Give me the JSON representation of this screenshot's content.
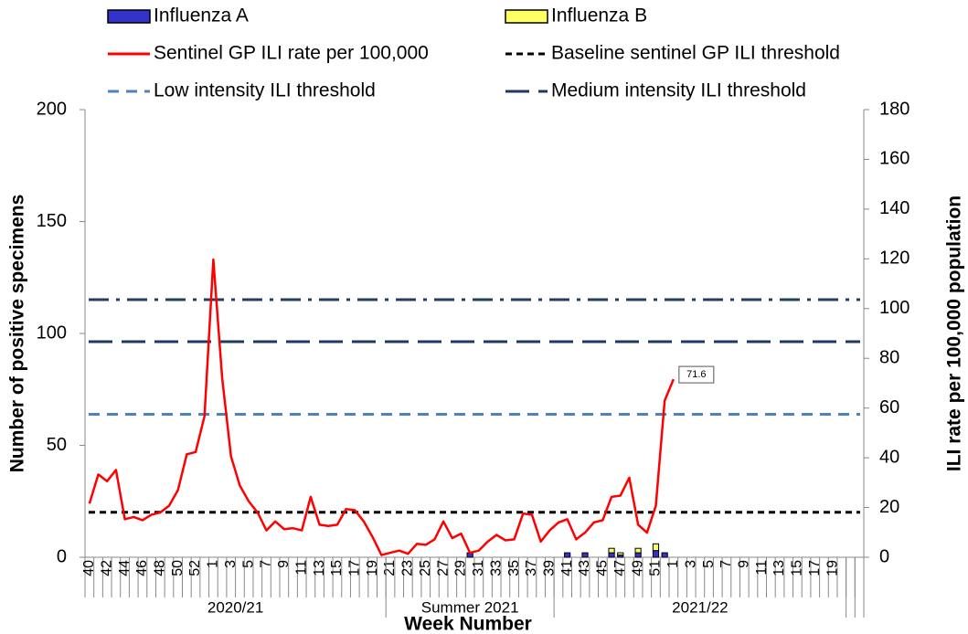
{
  "chart_data": {
    "type": "bar-line",
    "ylabel": "Number of positive specimens",
    "y2label": "ILI rate per 100,000 population",
    "xlabel": "Week Number",
    "ylim": [
      0,
      200
    ],
    "yticks": [
      0,
      50,
      100,
      150,
      200
    ],
    "y2lim": [
      0,
      180
    ],
    "y2ticks": [
      0,
      20,
      40,
      60,
      80,
      100,
      120,
      140,
      160,
      180
    ],
    "categories": [
      "40",
      null,
      "42",
      null,
      "44",
      null,
      "46",
      null,
      "48",
      null,
      "50",
      null,
      "52",
      null,
      "1",
      null,
      "3",
      null,
      "5",
      null,
      "7",
      null,
      "9",
      null,
      "11",
      null,
      "13",
      null,
      "15",
      null,
      "17",
      null,
      "19",
      null,
      "21",
      null,
      "23",
      null,
      "25",
      null,
      "27",
      null,
      "29",
      null,
      "31",
      null,
      "33",
      null,
      "35",
      null,
      "37",
      null,
      "39",
      null,
      "41",
      null,
      "43",
      null,
      "45",
      null,
      "47",
      null,
      "49",
      null,
      "51",
      null,
      "1",
      null,
      "3",
      null,
      "5",
      null,
      "7",
      null,
      "9",
      null,
      "11",
      null,
      "13",
      null,
      "15",
      null,
      "17",
      null,
      "19",
      null,
      null,
      null
    ],
    "groups": [
      {
        "label": "2020/21",
        "start": 0,
        "end": 33
      },
      {
        "label": "Summer 2021",
        "start": 34,
        "end": 52
      },
      {
        "label": "2021/22",
        "start": 53,
        "end": 85
      }
    ],
    "series": [
      {
        "name": "Influenza A",
        "type": "bar",
        "axis": "y",
        "color": "#3333cc",
        "values": [
          null,
          null,
          null,
          null,
          null,
          null,
          null,
          null,
          null,
          null,
          null,
          null,
          null,
          null,
          null,
          null,
          null,
          null,
          null,
          null,
          null,
          null,
          null,
          null,
          null,
          null,
          null,
          null,
          null,
          null,
          null,
          null,
          null,
          null,
          null,
          null,
          null,
          null,
          null,
          null,
          null,
          null,
          null,
          2,
          null,
          null,
          null,
          null,
          null,
          null,
          null,
          null,
          null,
          null,
          2,
          null,
          2,
          null,
          null,
          2,
          1,
          null,
          2,
          null,
          3,
          2,
          null,
          null,
          null,
          null,
          null,
          null,
          null,
          null,
          null,
          null,
          null,
          null,
          null,
          null,
          null,
          null,
          null,
          null,
          null,
          null,
          null,
          null
        ]
      },
      {
        "name": "Influenza B",
        "type": "bar",
        "axis": "y",
        "color": "#ffff66",
        "values": [
          null,
          null,
          null,
          null,
          null,
          null,
          null,
          null,
          null,
          null,
          null,
          null,
          null,
          null,
          null,
          null,
          null,
          null,
          null,
          null,
          null,
          null,
          null,
          null,
          null,
          null,
          null,
          null,
          null,
          null,
          null,
          null,
          null,
          null,
          null,
          null,
          null,
          null,
          null,
          null,
          null,
          null,
          null,
          null,
          null,
          null,
          null,
          null,
          null,
          null,
          null,
          null,
          null,
          null,
          null,
          null,
          null,
          null,
          null,
          2,
          1,
          null,
          2,
          null,
          3,
          null,
          null,
          null,
          null,
          null,
          null,
          null,
          null,
          null,
          null,
          null,
          null,
          null,
          null,
          null,
          null,
          null,
          null,
          null,
          null,
          null,
          null,
          null
        ]
      },
      {
        "name": "Sentinel GP ILI rate per 100,000",
        "type": "line",
        "axis": "y2",
        "color": "#ff0000",
        "values": [
          21.6,
          33.3,
          30.6,
          35.1,
          15.3,
          16.2,
          14.9,
          17.1,
          18,
          20.7,
          27,
          41.4,
          42.3,
          56.7,
          119.7,
          72,
          40.5,
          28.8,
          22.5,
          18,
          10.8,
          14.4,
          11.3,
          11.7,
          10.8,
          24.3,
          13.1,
          12.6,
          13.1,
          19.4,
          18.9,
          14.4,
          8.1,
          0.9,
          1.8,
          2.7,
          1.4,
          5.4,
          5,
          7.2,
          14.4,
          7.7,
          9.5,
          1.8,
          2.7,
          6.3,
          9,
          6.8,
          7.2,
          17.6,
          17.1,
          6.3,
          10.8,
          14,
          15.3,
          7.2,
          9.9,
          14,
          14.9,
          24.3,
          24.8,
          32,
          13.1,
          9.9,
          20.7,
          63,
          71.6,
          null,
          null,
          null,
          null,
          null,
          null,
          null,
          null,
          null,
          null,
          null,
          null,
          null,
          null,
          null,
          null,
          null,
          null,
          null,
          null,
          null
        ]
      },
      {
        "name": "Baseline sentinel GP ILI threshold",
        "type": "hline",
        "axis": "y2",
        "color": "#000000",
        "dash": "short",
        "value": 18.1
      },
      {
        "name": "Low intensity ILI threshold",
        "type": "hline",
        "axis": "y2",
        "color": "#4f81bd",
        "dash": "medium",
        "value": 57.5
      },
      {
        "name": "Medium intensity ILI threshold",
        "type": "hline",
        "axis": "y2",
        "color": "#1f3864",
        "dash": "long",
        "value": 86.7
      },
      {
        "type": "hline",
        "axis": "y2",
        "color": "#243f60",
        "dash": "dashdot",
        "value": 103.6
      }
    ]
  }
}
